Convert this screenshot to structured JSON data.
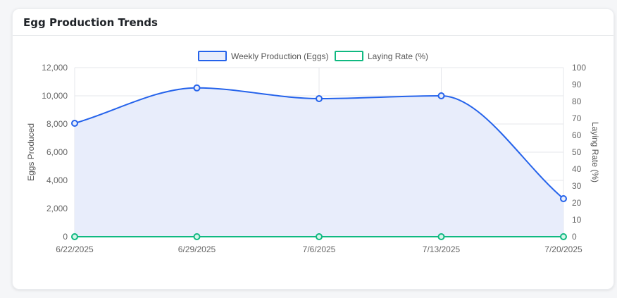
{
  "card": {
    "title": "Egg Production Trends"
  },
  "colors": {
    "production_line": "#2563eb",
    "production_fill": "#e8edfb",
    "laying_line": "#10b981",
    "grid": "#e5e7eb"
  },
  "chart_data": {
    "type": "line",
    "categories": [
      "6/22/2025",
      "6/29/2025",
      "7/6/2025",
      "7/13/2025",
      "7/20/2025"
    ],
    "series": [
      {
        "name": "Weekly Production (Eggs)",
        "axis": "left",
        "filled": true,
        "values": [
          8050,
          10560,
          9800,
          10000,
          2700
        ]
      },
      {
        "name": "Laying Rate (%)",
        "axis": "right",
        "filled": false,
        "values": [
          0,
          0,
          0,
          0,
          0
        ]
      }
    ],
    "ylabel": "Eggs Produced",
    "y2label": "Laying Rate (%)",
    "ylim": [
      0,
      12000
    ],
    "y2lim": [
      0,
      100
    ],
    "yticks": [
      "0",
      "2,000",
      "4,000",
      "6,000",
      "8,000",
      "10,000",
      "12,000"
    ],
    "y2ticks": [
      "0",
      "10",
      "20",
      "30",
      "40",
      "50",
      "60",
      "70",
      "80",
      "90",
      "100"
    ],
    "grid": true,
    "legend": "top-center"
  }
}
